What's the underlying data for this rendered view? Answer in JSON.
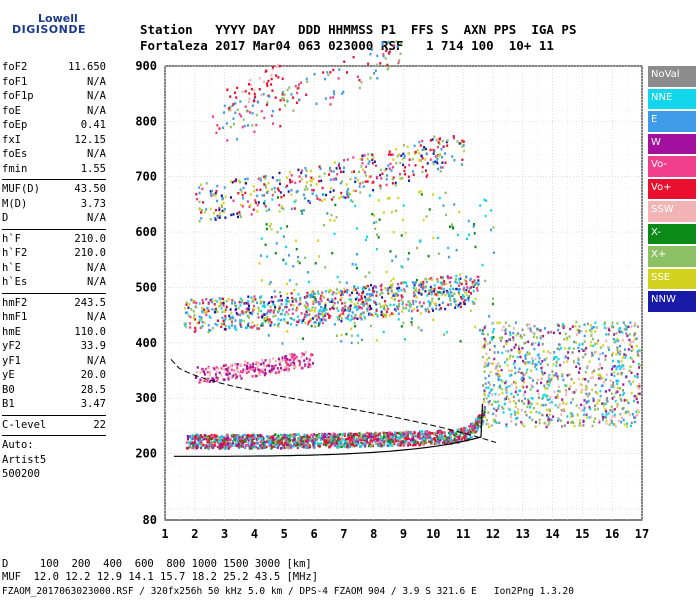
{
  "logo": {
    "line1": "Lowell",
    "line2": "DIGISONDE"
  },
  "header": {
    "row1": "Station   YYYY DAY   DDD HHMMSS P1  FFS S  AXN PPS  IGA PS",
    "row2": "Fortaleza 2017 Mar04 063 023000 RSF   1 714 100  10+ 11"
  },
  "params_a": [
    {
      "k": "foF2",
      "v": "11.650"
    },
    {
      "k": "foF1",
      "v": "N/A"
    },
    {
      "k": "foF1p",
      "v": "N/A"
    },
    {
      "k": "foE",
      "v": "N/A"
    },
    {
      "k": "foEp",
      "v": "0.41"
    },
    {
      "k": "fxI",
      "v": "12.15"
    },
    {
      "k": "foEs",
      "v": "N/A"
    },
    {
      "k": "fmin",
      "v": "1.55"
    }
  ],
  "params_b": [
    {
      "k": "MUF(D)",
      "v": "43.50"
    },
    {
      "k": "M(D)",
      "v": "3.73"
    },
    {
      "k": "D",
      "v": "N/A"
    }
  ],
  "params_c": [
    {
      "k": "h`F",
      "v": "210.0"
    },
    {
      "k": "h`F2",
      "v": "210.0"
    },
    {
      "k": "h`E",
      "v": "N/A"
    },
    {
      "k": "h`Es",
      "v": "N/A"
    }
  ],
  "params_d": [
    {
      "k": "hmF2",
      "v": "243.5"
    },
    {
      "k": "hmF1",
      "v": "N/A"
    },
    {
      "k": "hmE",
      "v": "110.0"
    },
    {
      "k": "yF2",
      "v": "33.9"
    },
    {
      "k": "yF1",
      "v": "N/A"
    },
    {
      "k": "yE",
      "v": "20.0"
    },
    {
      "k": "B0",
      "v": "28.5"
    },
    {
      "k": "B1",
      "v": "3.47"
    }
  ],
  "params_e": [
    {
      "k": "C-level",
      "v": "22"
    }
  ],
  "auto": [
    "Auto:",
    "Artist5",
    "500200"
  ],
  "legend": [
    {
      "label": "NoVal",
      "color": "#8c8c8c"
    },
    {
      "label": "NNE",
      "color": "#12d7ec"
    },
    {
      "label": "E",
      "color": "#3d9be8"
    },
    {
      "label": "W",
      "color": "#a1119e"
    },
    {
      "label": "Vo-",
      "color": "#ef3e8c"
    },
    {
      "label": "Vo+",
      "color": "#e8102e"
    },
    {
      "label": "SSW",
      "color": "#f2b3b5"
    },
    {
      "label": "X-",
      "color": "#0b8a1a"
    },
    {
      "label": "X+",
      "color": "#8dc064"
    },
    {
      "label": "SSE",
      "color": "#d2d21f"
    },
    {
      "label": "NNW",
      "color": "#1a1aa8"
    }
  ],
  "footer": {
    "row1": "D     100  200  400  600  800 1000 1500 3000 [km]",
    "row2": "MUF  12.0 12.2 12.9 14.1 15.7 18.2 25.2 43.5 [MHz]",
    "row3": "FZAOM_2017063023000.RSF / 320fx256h 50 kHz 5.0 km / DPS-4 FZAOM 904 / 3.9 S 321.6 E   Ion2Png 1.3.20"
  },
  "chart_data": {
    "type": "scatter",
    "x_ticks": [
      1,
      2,
      3,
      4,
      5,
      6,
      7,
      8,
      9,
      10,
      11,
      12,
      13,
      14,
      15,
      16,
      17
    ],
    "y_ticks": [
      80,
      200,
      300,
      400,
      500,
      600,
      700,
      800,
      900
    ],
    "xlim": [
      1,
      17
    ],
    "ylim": [
      80,
      900
    ],
    "grid": true
  }
}
